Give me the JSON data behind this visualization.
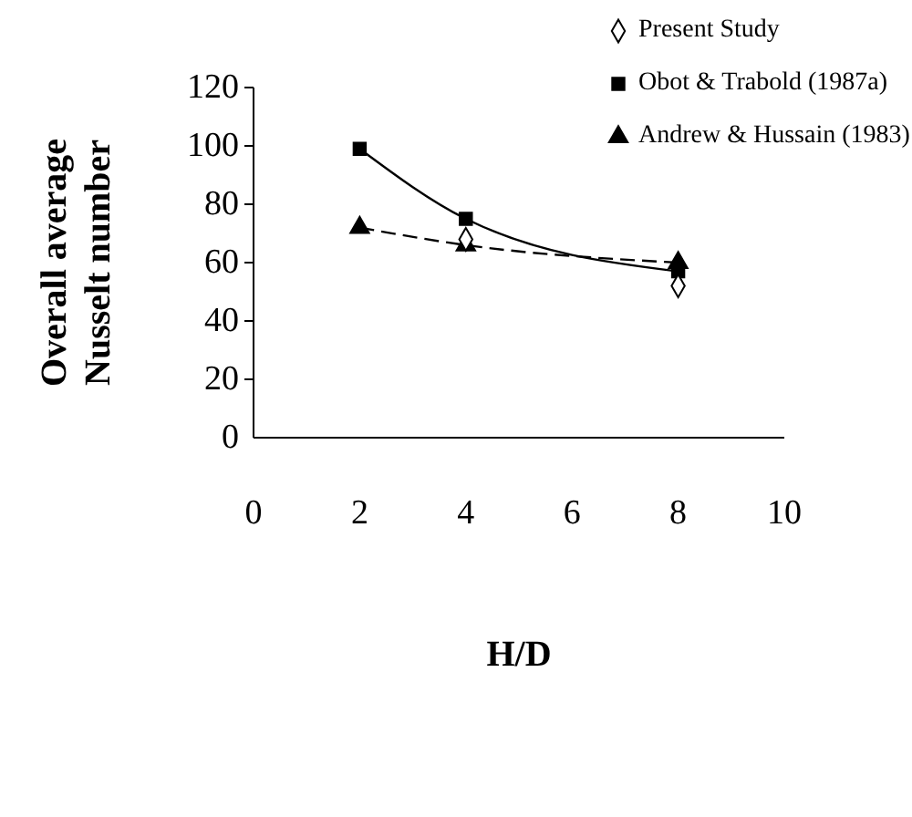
{
  "chart_data": {
    "type": "line",
    "xlabel": "H/D",
    "ylabel": "Overall average Nusselt number",
    "xlim": [
      0,
      10
    ],
    "xticks": [
      0,
      2,
      4,
      6,
      8,
      10
    ],
    "ylim": [
      0,
      120
    ],
    "yticks": [
      0,
      20,
      40,
      60,
      80,
      100,
      120
    ],
    "grid": false,
    "legend": "top right",
    "series": [
      {
        "name": "Present Study",
        "type": "scatter",
        "marker": "diamond",
        "color": "#000000",
        "x": [
          4,
          8
        ],
        "values": [
          68,
          52
        ]
      },
      {
        "name": "Obot & Trabold (1987a)",
        "marker": "square",
        "line_style": "solid",
        "color": "#000000",
        "x": [
          2,
          4,
          8
        ],
        "values": [
          99,
          75,
          57
        ]
      },
      {
        "name": "Andrew & Hussain (1983)",
        "marker": "triangle",
        "line_style": "dashed",
        "color": "#000000",
        "x": [
          2,
          4,
          8
        ],
        "values": [
          72,
          66,
          60
        ]
      }
    ]
  }
}
